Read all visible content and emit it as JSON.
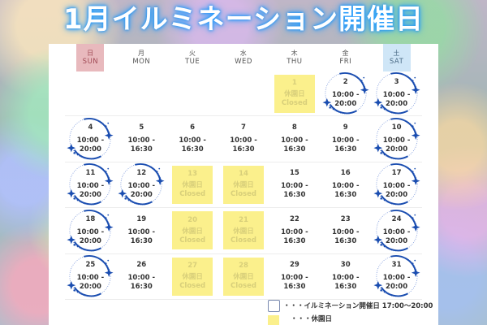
{
  "title": "1月イルミネーション開催日",
  "colors": {
    "title_glow": "#2aa0ff",
    "sunday_bg": "#e8b9bd",
    "saturday_bg": "#cfe6f7",
    "closed_bg": "#fbf08c",
    "ring": "#1a4db0"
  },
  "weekdays": [
    {
      "jp": "日",
      "en": "SUN"
    },
    {
      "jp": "月",
      "en": "MON"
    },
    {
      "jp": "火",
      "en": "TUE"
    },
    {
      "jp": "水",
      "en": "WED"
    },
    {
      "jp": "木",
      "en": "THU"
    },
    {
      "jp": "金",
      "en": "FRI"
    },
    {
      "jp": "土",
      "en": "SAT"
    }
  ],
  "weeks": [
    [
      null,
      null,
      null,
      null,
      {
        "day": "1",
        "type": "closed",
        "line1": "休園日",
        "line2": "Closed"
      },
      {
        "day": "2",
        "type": "illumination",
        "line1": "10:00 -",
        "line2": "20:00"
      },
      {
        "day": "3",
        "type": "illumination",
        "line1": "10:00 -",
        "line2": "20:00"
      }
    ],
    [
      {
        "day": "4",
        "type": "illumination",
        "line1": "10:00 -",
        "line2": "20:00"
      },
      {
        "day": "5",
        "type": "open",
        "line1": "10:00 -",
        "line2": "16:30"
      },
      {
        "day": "6",
        "type": "open",
        "line1": "10:00 -",
        "line2": "16:30"
      },
      {
        "day": "7",
        "type": "open",
        "line1": "10:00 -",
        "line2": "16:30"
      },
      {
        "day": "8",
        "type": "open",
        "line1": "10:00 -",
        "line2": "16:30"
      },
      {
        "day": "9",
        "type": "open",
        "line1": "10:00 -",
        "line2": "16:30"
      },
      {
        "day": "10",
        "type": "illumination",
        "line1": "10:00 -",
        "line2": "20:00"
      }
    ],
    [
      {
        "day": "11",
        "type": "illumination",
        "line1": "10:00 -",
        "line2": "20:00"
      },
      {
        "day": "12",
        "type": "illumination",
        "line1": "10:00 -",
        "line2": "20:00"
      },
      {
        "day": "13",
        "type": "closed",
        "line1": "休園日",
        "line2": "Closed"
      },
      {
        "day": "14",
        "type": "closed",
        "line1": "休園日",
        "line2": "Closed"
      },
      {
        "day": "15",
        "type": "open",
        "line1": "10:00 -",
        "line2": "16:30"
      },
      {
        "day": "16",
        "type": "open",
        "line1": "10:00 -",
        "line2": "16:30"
      },
      {
        "day": "17",
        "type": "illumination",
        "line1": "10:00 -",
        "line2": "20:00"
      }
    ],
    [
      {
        "day": "18",
        "type": "illumination",
        "line1": "10:00 -",
        "line2": "20:00"
      },
      {
        "day": "19",
        "type": "open",
        "line1": "10:00 -",
        "line2": "16:30"
      },
      {
        "day": "20",
        "type": "closed",
        "line1": "休園日",
        "line2": "Closed"
      },
      {
        "day": "21",
        "type": "closed",
        "line1": "休園日",
        "line2": "Closed"
      },
      {
        "day": "22",
        "type": "open",
        "line1": "10:00 -",
        "line2": "16:30"
      },
      {
        "day": "23",
        "type": "open",
        "line1": "10:00 -",
        "line2": "16:30"
      },
      {
        "day": "24",
        "type": "illumination",
        "line1": "10:00 -",
        "line2": "20:00"
      }
    ],
    [
      {
        "day": "25",
        "type": "illumination",
        "line1": "10:00 -",
        "line2": "20:00"
      },
      {
        "day": "26",
        "type": "open",
        "line1": "10:00 -",
        "line2": "16:30"
      },
      {
        "day": "27",
        "type": "closed",
        "line1": "休園日",
        "line2": "Closed"
      },
      {
        "day": "28",
        "type": "closed",
        "line1": "休園日",
        "line2": "Closed"
      },
      {
        "day": "29",
        "type": "open",
        "line1": "10:00 -",
        "line2": "16:30"
      },
      {
        "day": "30",
        "type": "open",
        "line1": "10:00 -",
        "line2": "16:30"
      },
      {
        "day": "31",
        "type": "illumination",
        "line1": "10:00 -",
        "line2": "20:00"
      }
    ]
  ],
  "legend": {
    "illumination": "・・・イルミネーション開催日 17:00〜20:00",
    "closed": "・・・休園日"
  }
}
